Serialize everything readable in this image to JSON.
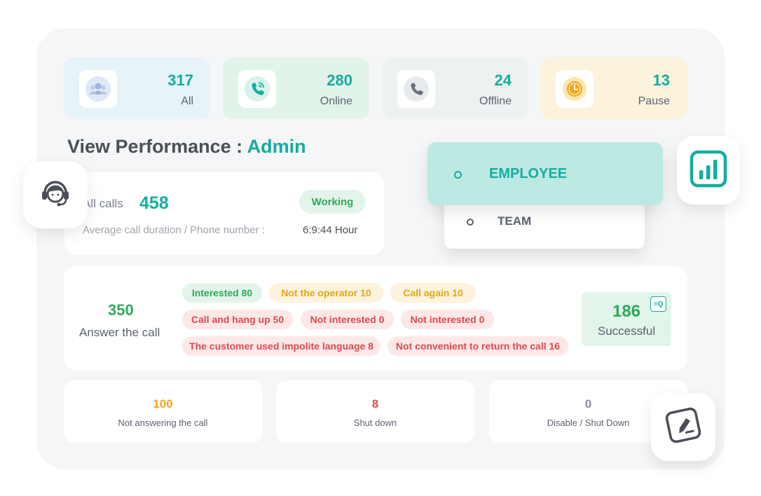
{
  "stats": [
    {
      "value": "317",
      "label": "All",
      "icon": "people-icon"
    },
    {
      "value": "280",
      "label": "Online",
      "icon": "phone-ringing-icon"
    },
    {
      "value": "24",
      "label": "Offline",
      "icon": "phone-icon"
    },
    {
      "value": "13",
      "label": "Pause",
      "icon": "clock-icon"
    }
  ],
  "header": {
    "prefix": "View Performance : ",
    "role": "Admin"
  },
  "calls": {
    "label": "All calls",
    "count": "458",
    "status": "Working",
    "avg_label": "Average call duration / Phone number  :",
    "avg_value": "6:9:44 Hour"
  },
  "scope_menu": {
    "active": "EMPLOYEE",
    "other": "TEAM"
  },
  "answer": {
    "count": "350",
    "label": "Answer the call",
    "tags": [
      {
        "text": "Interested 80",
        "tone": "green"
      },
      {
        "text": "Not the operator 10",
        "tone": "yellow"
      },
      {
        "text": "Call again 10",
        "tone": "yellow"
      },
      {
        "text": "Call and hang up 50",
        "tone": "red"
      },
      {
        "text": "Not interested 0",
        "tone": "red"
      },
      {
        "text": "Not interested 0",
        "tone": "red"
      },
      {
        "text": "The customer used impolite language 8",
        "tone": "red"
      },
      {
        "text": "Not convenient to return the call 16",
        "tone": "red"
      }
    ],
    "success": {
      "count": "186",
      "label": "Successful",
      "icon_text": "≡Q"
    }
  },
  "bottom": [
    {
      "value": "100",
      "label": "Not answering the call"
    },
    {
      "value": "8",
      "label": "Shut down"
    },
    {
      "value": "0",
      "label": "Disable / Shut Down"
    }
  ],
  "colors": {
    "accent": "#14ada0",
    "success": "#2eaa5a",
    "warning": "#e3a51b",
    "danger": "#e0484f"
  }
}
